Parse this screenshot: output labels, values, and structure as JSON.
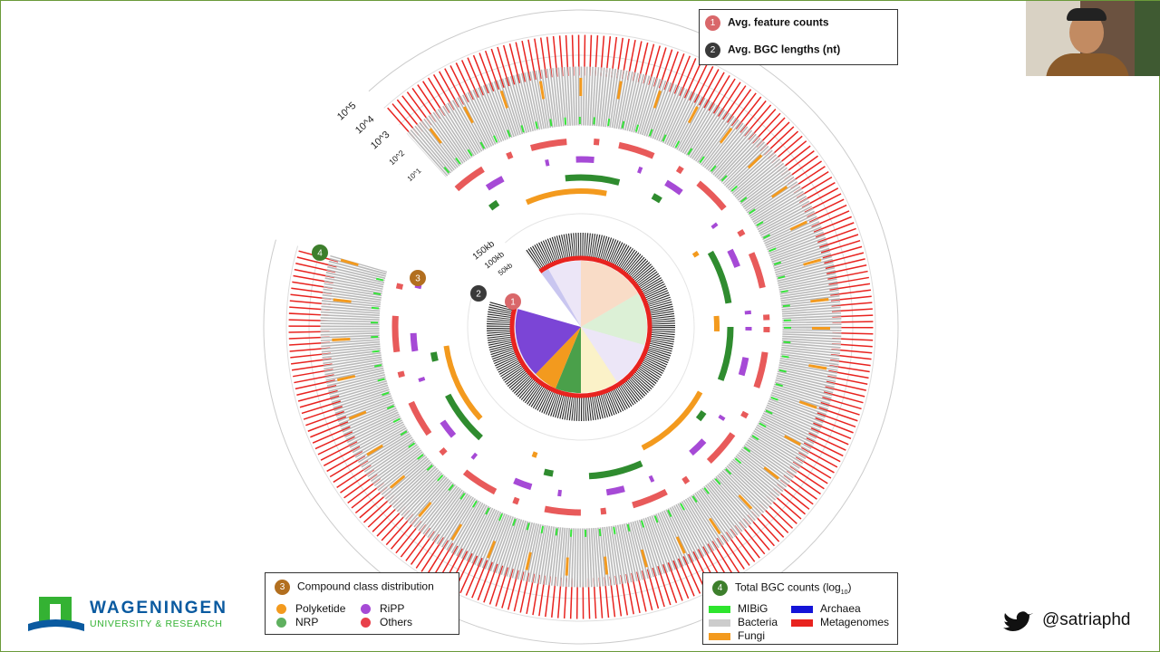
{
  "legend_top": [
    {
      "number": "1",
      "label": "Avg. feature counts"
    },
    {
      "number": "2",
      "label": "Avg. BGC lengths (nt)"
    }
  ],
  "scales": {
    "counts": [
      "10^5",
      "10^4",
      "10^3",
      "10^2",
      "10^1"
    ],
    "lengths": [
      "150kb",
      "100kb",
      "50kb"
    ]
  },
  "ring_markers": [
    "4",
    "3",
    "2",
    "1"
  ],
  "legend_compound": {
    "number": "3",
    "title": "Compound class distribution",
    "items": [
      "Polyketide",
      "RiPP",
      "NRP",
      "Others"
    ]
  },
  "legend_total": {
    "number": "4",
    "title": "Total BGC counts (log",
    "title_sub": "10",
    "title_end": ")",
    "items": [
      "MIBiG",
      "Archaea",
      "Bacteria",
      "Metagenomes",
      "Fungi"
    ]
  },
  "logo": {
    "title": "WAGENINGEN",
    "subtitle": "UNIVERSITY & RESEARCH"
  },
  "twitter_handle": "@satriaphd"
}
